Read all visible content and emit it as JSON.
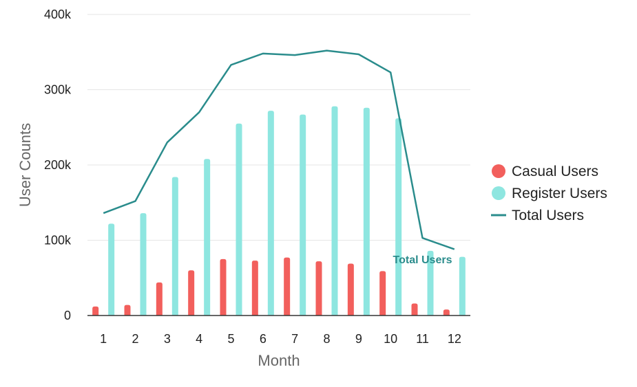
{
  "chart_data": {
    "type": "bar",
    "categories": [
      "1",
      "2",
      "3",
      "4",
      "5",
      "6",
      "7",
      "8",
      "9",
      "10",
      "11",
      "12"
    ],
    "series": [
      {
        "name": "Casual Users",
        "type": "bar",
        "color": "#f25f5c",
        "values": [
          12000,
          14000,
          44000,
          60000,
          75000,
          73000,
          77000,
          72000,
          69000,
          59000,
          16000,
          8000
        ]
      },
      {
        "name": "Register Users",
        "type": "bar",
        "color": "#8ee6e0",
        "values": [
          122000,
          136000,
          184000,
          208000,
          255000,
          272000,
          267000,
          278000,
          276000,
          262000,
          86000,
          78000
        ]
      },
      {
        "name": "Total Users",
        "type": "line",
        "color": "#2a8c8c",
        "values": [
          136000,
          152000,
          230000,
          270000,
          333000,
          348000,
          346000,
          352000,
          347000,
          323000,
          103000,
          88000
        ]
      }
    ],
    "xlabel": "Month",
    "ylabel": "User Counts",
    "ylim": [
      0,
      400000
    ],
    "yticks": [
      {
        "value": 0,
        "label": "0"
      },
      {
        "value": 100000,
        "label": "100k"
      },
      {
        "value": 200000,
        "label": "200k"
      },
      {
        "value": 300000,
        "label": "300k"
      },
      {
        "value": 400000,
        "label": "400k"
      }
    ],
    "grid": true,
    "legend_position": "right",
    "annotations": [
      {
        "text": "Total Users",
        "color": "#2a8c8c",
        "category": "11",
        "value": 75000
      }
    ]
  }
}
